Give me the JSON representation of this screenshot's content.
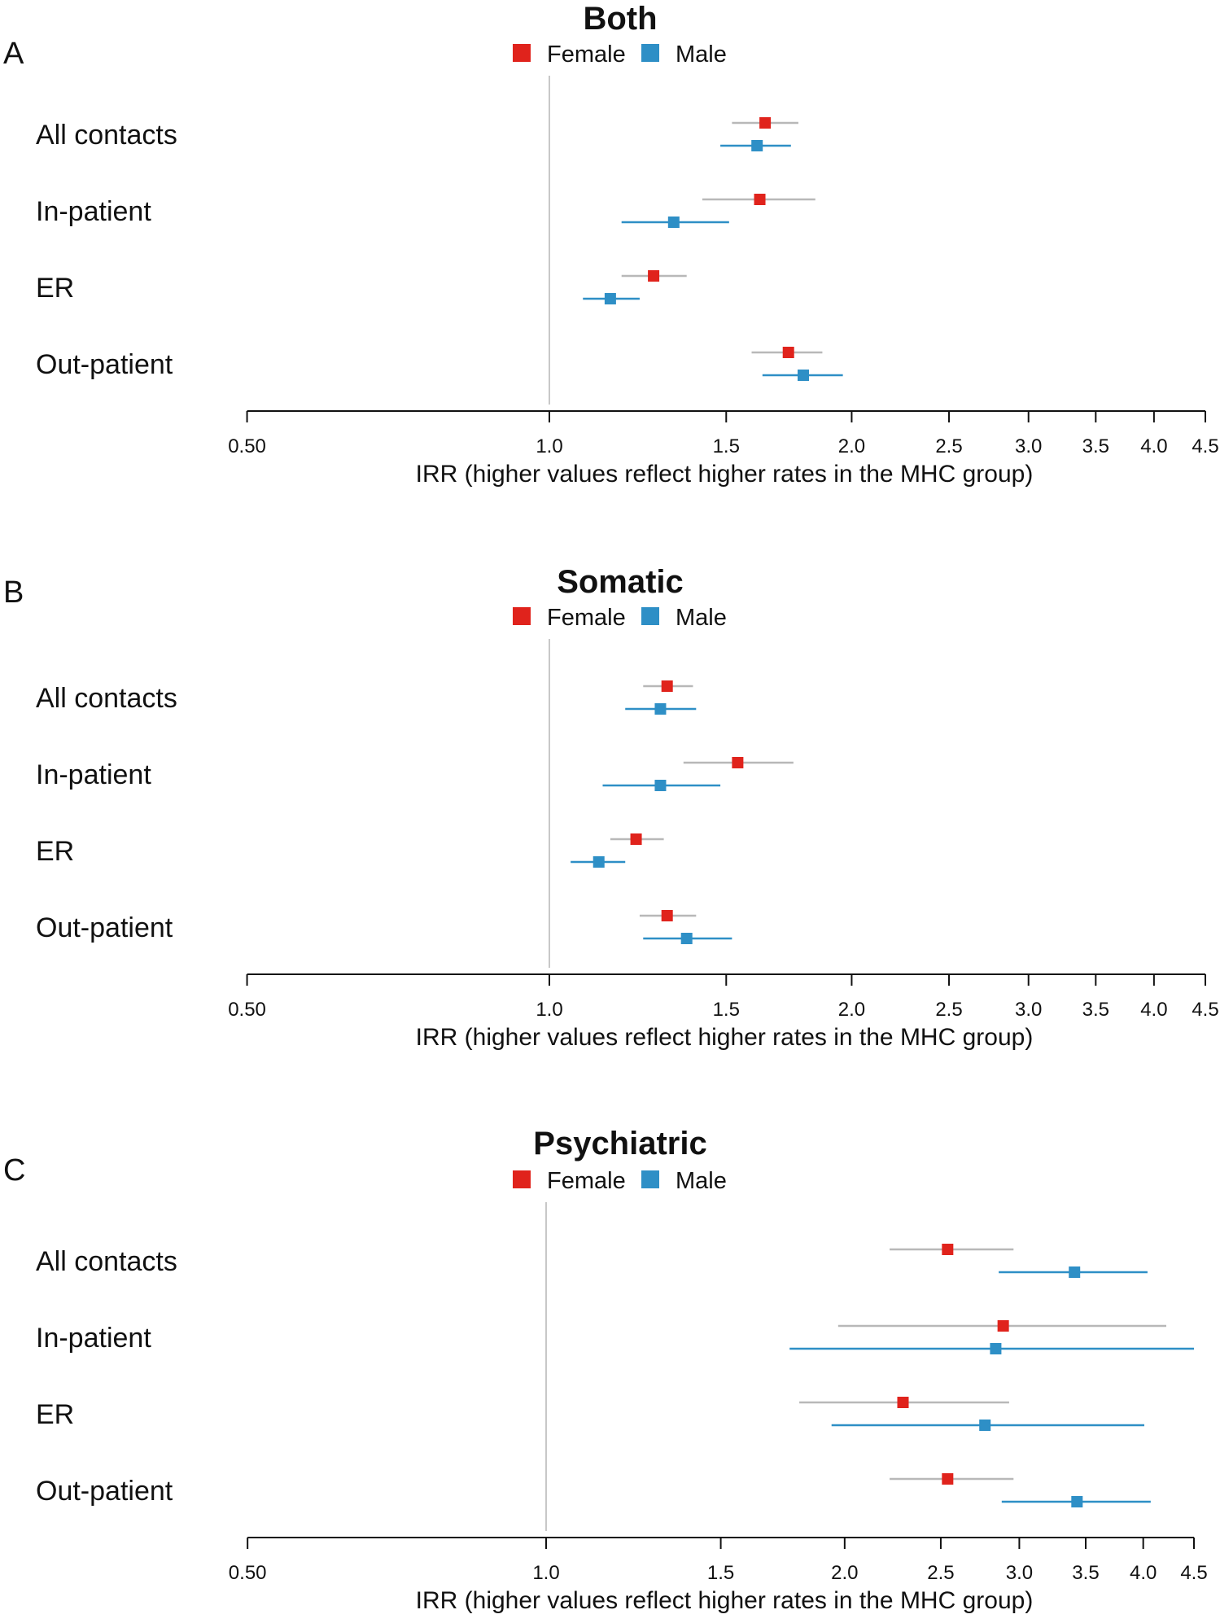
{
  "chart_data": [
    {
      "type": "forest",
      "panel": "A",
      "title": "Both",
      "legend": [
        {
          "name": "Female",
          "color": "#e0231c"
        },
        {
          "name": "Male",
          "color": "#2e8fc6"
        }
      ],
      "categories": [
        "All contacts",
        "In-patient",
        "ER",
        "Out-patient"
      ],
      "series": [
        {
          "name": "Female",
          "estimates": [
            1.64,
            1.62,
            1.27,
            1.73
          ],
          "lower": [
            1.52,
            1.42,
            1.18,
            1.59
          ],
          "upper": [
            1.77,
            1.84,
            1.37,
            1.87
          ]
        },
        {
          "name": "Male",
          "estimates": [
            1.61,
            1.33,
            1.15,
            1.79
          ],
          "lower": [
            1.48,
            1.18,
            1.08,
            1.63
          ],
          "upper": [
            1.74,
            1.51,
            1.23,
            1.96
          ]
        }
      ],
      "reference_line": 1.0,
      "x_scale": "log",
      "xlim": [
        0.5,
        4.5
      ],
      "xticks": [
        0.5,
        1.0,
        1.5,
        2.0,
        2.5,
        3.0,
        3.5,
        4.0,
        4.5
      ],
      "xtick_labels": [
        "0.50",
        "1.0",
        "1.5",
        "2.0",
        "2.5",
        "3.0",
        "3.5",
        "4.0",
        "4.5"
      ],
      "xlabel": "IRR (higher values reflect higher rates in the MHC group)"
    },
    {
      "type": "forest",
      "panel": "B",
      "title": "Somatic",
      "legend": [
        {
          "name": "Female",
          "color": "#e0231c"
        },
        {
          "name": "Male",
          "color": "#2e8fc6"
        }
      ],
      "categories": [
        "All contacts",
        "In-patient",
        "ER",
        "Out-patient"
      ],
      "series": [
        {
          "name": "Female",
          "estimates": [
            1.31,
            1.54,
            1.22,
            1.31
          ],
          "lower": [
            1.24,
            1.36,
            1.15,
            1.23
          ],
          "upper": [
            1.39,
            1.75,
            1.3,
            1.4
          ]
        },
        {
          "name": "Male",
          "estimates": [
            1.29,
            1.29,
            1.12,
            1.37
          ],
          "lower": [
            1.19,
            1.13,
            1.05,
            1.24
          ],
          "upper": [
            1.4,
            1.48,
            1.19,
            1.52
          ]
        }
      ],
      "reference_line": 1.0,
      "x_scale": "log",
      "xlim": [
        0.5,
        4.5
      ],
      "xticks": [
        0.5,
        1.0,
        1.5,
        2.0,
        2.5,
        3.0,
        3.5,
        4.0,
        4.5
      ],
      "xtick_labels": [
        "0.50",
        "1.0",
        "1.5",
        "2.0",
        "2.5",
        "3.0",
        "3.5",
        "4.0",
        "4.5"
      ],
      "xlabel": "IRR (higher values reflect higher rates in the MHC group)"
    },
    {
      "type": "forest",
      "panel": "C",
      "title": "Psychiatric",
      "legend": [
        {
          "name": "Female",
          "color": "#e0231c"
        },
        {
          "name": "Male",
          "color": "#2e8fc6"
        }
      ],
      "categories": [
        "All contacts",
        "In-patient",
        "ER",
        "Out-patient"
      ],
      "series": [
        {
          "name": "Female",
          "estimates": [
            2.54,
            2.89,
            2.29,
            2.54
          ],
          "lower": [
            2.22,
            1.97,
            1.8,
            2.22
          ],
          "upper": [
            2.96,
            4.22,
            2.93,
            2.96
          ]
        },
        {
          "name": "Male",
          "estimates": [
            3.41,
            2.84,
            2.77,
            3.43
          ],
          "lower": [
            2.86,
            1.76,
            1.94,
            2.88
          ],
          "upper": [
            4.04,
            4.62,
            4.01,
            4.07
          ]
        }
      ],
      "reference_line": 1.0,
      "x_scale": "log",
      "xlim": [
        0.5,
        4.5
      ],
      "xticks": [
        0.5,
        1.0,
        1.5,
        2.0,
        2.5,
        3.0,
        3.5,
        4.0,
        4.5
      ],
      "xtick_labels": [
        "0.50",
        "1.0",
        "1.5",
        "2.0",
        "2.5",
        "3.0",
        "3.5",
        "4.0",
        "4.5"
      ],
      "xlabel": "IRR (higher values reflect higher rates in the MHC group)"
    }
  ],
  "colors": {
    "female_marker": "#e0231c",
    "male_marker": "#2e8fc6",
    "female_ci": "#b8b8b8",
    "male_ci": "#2e8fc6",
    "reference_line": "#c8c8c8",
    "axis": "#111111"
  }
}
